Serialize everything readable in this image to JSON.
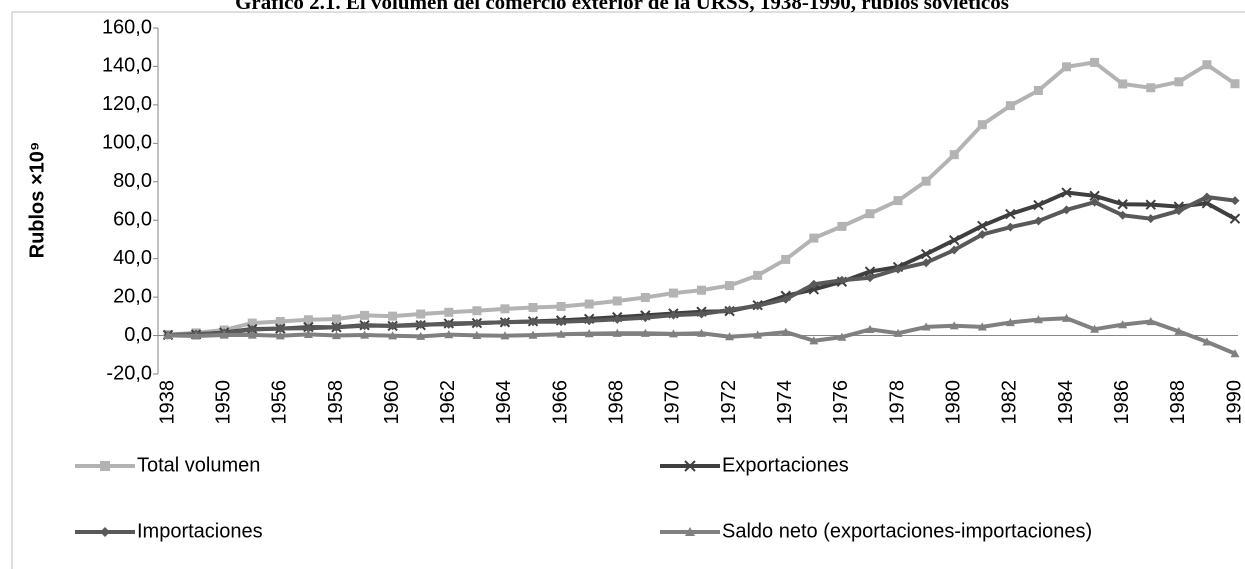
{
  "chart_data": {
    "type": "line",
    "title": "Gráfico 2.1. El volumen del comercio exterior de la URSS, 1938-1990, rublos soviéticos",
    "ylabel": "Rublos ×10⁹",
    "categories": [
      "1938",
      null,
      "1950",
      null,
      "1956",
      null,
      "1958",
      null,
      "1960",
      null,
      "1962",
      null,
      "1964",
      null,
      "1966",
      null,
      "1968",
      null,
      "1970",
      null,
      "1972",
      null,
      "1974",
      null,
      "1976",
      null,
      "1978",
      null,
      "1980",
      null,
      "1982",
      null,
      "1984",
      null,
      "1986",
      null,
      "1988",
      null,
      "1990"
    ],
    "series": [
      {
        "name": "Total volumen",
        "color": "#b3b3b3",
        "marker": "square",
        "values": [
          0.5,
          1.4,
          2.9,
          6.5,
          7.3,
          8.2,
          8.6,
          10.5,
          10.1,
          11.2,
          12.1,
          12.9,
          13.9,
          14.6,
          15.1,
          16.4,
          18.0,
          19.8,
          22.1,
          23.6,
          26.0,
          31.3,
          39.6,
          50.7,
          56.8,
          63.4,
          70.2,
          80.3,
          94.1,
          109.7,
          119.6,
          127.5,
          139.8,
          142.1,
          130.9,
          128.9,
          132.0,
          140.9,
          131.0
        ]
      },
      {
        "name": "Exportaciones",
        "color": "#3f3f3f",
        "marker": "x",
        "values": [
          0.3,
          0.6,
          1.6,
          3.4,
          3.6,
          4.4,
          4.3,
          5.4,
          5.0,
          5.4,
          6.3,
          6.5,
          6.9,
          7.4,
          7.9,
          8.7,
          9.6,
          10.5,
          11.5,
          12.4,
          12.7,
          15.8,
          20.7,
          24.0,
          28.0,
          33.3,
          35.7,
          42.4,
          49.6,
          57.1,
          63.2,
          67.9,
          74.4,
          72.7,
          68.3,
          68.1,
          67.1,
          68.8,
          60.8
        ]
      },
      {
        "name": "Importaciones",
        "color": "#595959",
        "marker": "diamond",
        "values": [
          0.2,
          0.8,
          1.3,
          3.1,
          3.7,
          3.8,
          4.3,
          5.1,
          5.1,
          5.8,
          5.8,
          6.4,
          7.0,
          7.2,
          7.2,
          7.7,
          8.4,
          9.3,
          10.6,
          11.2,
          13.3,
          15.5,
          18.9,
          26.7,
          28.8,
          30.1,
          34.5,
          37.9,
          44.5,
          52.6,
          56.4,
          59.6,
          65.4,
          69.4,
          62.6,
          60.8,
          64.9,
          72.1,
          70.2
        ]
      },
      {
        "name": "Saldo neto (exportaciones-importaciones)",
        "color": "#808080",
        "marker": "triangle",
        "values": [
          0.1,
          -0.2,
          0.3,
          0.3,
          -0.1,
          0.6,
          0.0,
          0.3,
          -0.1,
          -0.4,
          0.5,
          0.1,
          -0.1,
          0.2,
          0.7,
          1.0,
          1.2,
          1.2,
          0.9,
          1.2,
          -0.6,
          0.3,
          1.8,
          -2.7,
          -0.8,
          3.2,
          1.2,
          4.5,
          5.1,
          4.5,
          6.8,
          8.3,
          9.0,
          3.3,
          5.7,
          7.3,
          2.2,
          -3.3,
          -9.4
        ]
      }
    ],
    "ylim": [
      -20,
      160
    ],
    "yticks": [
      {
        "value": -20,
        "label": "-20,0"
      },
      {
        "value": 0,
        "label": "0,0"
      },
      {
        "value": 20,
        "label": "20,0"
      },
      {
        "value": 40,
        "label": "40,0"
      },
      {
        "value": 60,
        "label": "60,0"
      },
      {
        "value": 80,
        "label": "80,0"
      },
      {
        "value": 100,
        "label": "100,0"
      },
      {
        "value": 120,
        "label": "120,0"
      },
      {
        "value": 140,
        "label": "140,0"
      },
      {
        "value": 160,
        "label": "160,0"
      }
    ],
    "legend": "bottom"
  }
}
